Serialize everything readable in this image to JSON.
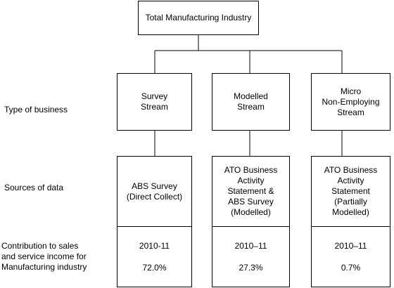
{
  "top": {
    "label": "Total Manufacturing Industry"
  },
  "row_labels": {
    "type": "Type of business",
    "sources": "Sources of data",
    "contribution": "Contribution to sales\nand service income for\nManufacturing industry"
  },
  "streams": [
    {
      "type": "Survey\nStream",
      "sources": "ABS Survey\n(Direct Collect)",
      "year": "2010-11",
      "pct": "72.0%"
    },
    {
      "type": "Modelled\nStream",
      "sources": "ATO Business\nActivity\nStatement &\nABS Survey\n(Modelled)",
      "year": "2010–11",
      "pct": "27.3%"
    },
    {
      "type": "Micro\nNon-Employing\nStream",
      "sources": "ATO Business\nActivity\nStatement\n(Partially\nModelled)",
      "year": "2010–11",
      "pct": "0.7%"
    }
  ]
}
